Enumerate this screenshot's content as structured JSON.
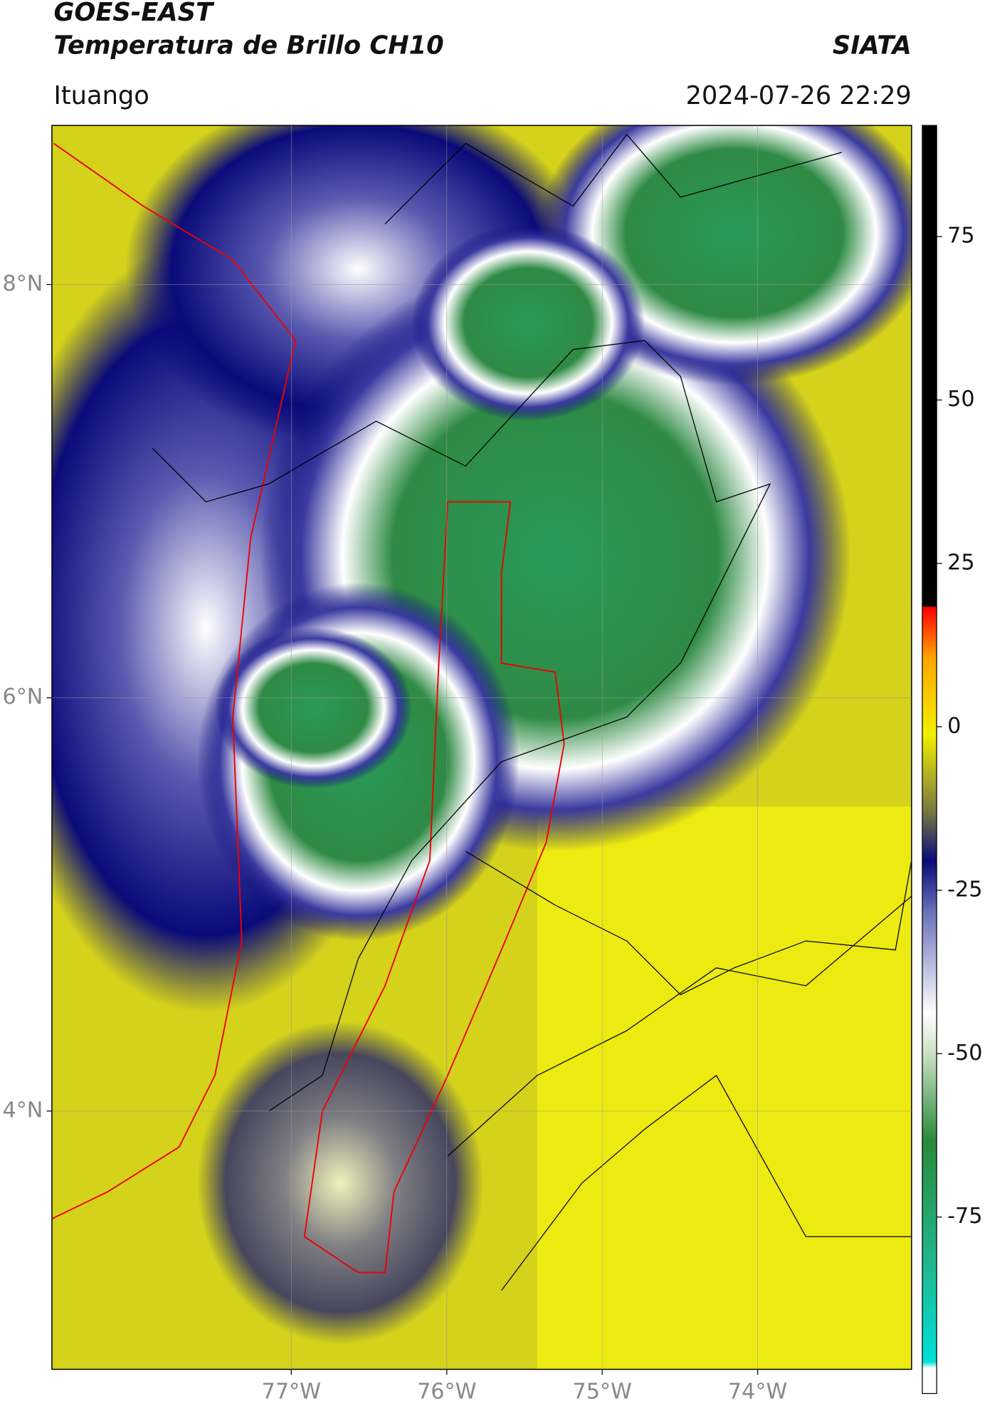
{
  "title": "GOES-EAST",
  "subtitle": "Temperatura de Brillo CH10",
  "brand": "SIATA",
  "location": "Ituango",
  "timestamp": "2024-07-26 22:29",
  "latlim": [
    2.75,
    8.77
  ],
  "lonlim": [
    -78.54,
    -73.01
  ],
  "lat_ticks": [
    {
      "value": 8,
      "label": "8°N"
    },
    {
      "value": 6,
      "label": "6°N"
    },
    {
      "value": 4,
      "label": "4°N"
    }
  ],
  "lon_ticks": [
    {
      "value": -77,
      "label": "77°W"
    },
    {
      "value": -76,
      "label": "76°W"
    },
    {
      "value": -75,
      "label": "75°W"
    },
    {
      "value": -74,
      "label": "74°W"
    }
  ],
  "colorbar": {
    "lim": [
      -102,
      92
    ],
    "ticks": [
      75,
      50,
      25,
      0,
      -25,
      -50,
      -75
    ]
  }
}
